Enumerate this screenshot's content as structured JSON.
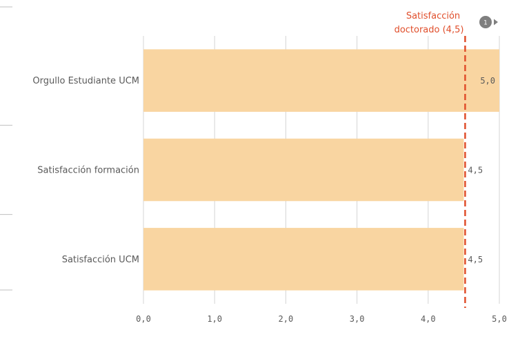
{
  "chart_data": {
    "type": "bar",
    "orientation": "horizontal",
    "categories": [
      "Orgullo Estudiante UCM",
      "Satisfacción formación",
      "Satisfacción UCM"
    ],
    "values": [
      5.0,
      4.5,
      4.5
    ],
    "value_labels": [
      "5,0",
      "4,5",
      "4,5"
    ],
    "xlim": [
      0,
      5
    ],
    "x_ticks": [
      0,
      1,
      2,
      3,
      4,
      5
    ],
    "x_tick_labels": [
      "0,0",
      "1,0",
      "2,0",
      "3,0",
      "4,0",
      "5,0"
    ],
    "grid": true,
    "bar_color": "#f9d5a1",
    "reference_line": {
      "value": 4.5,
      "label_line1": "Satisfacción",
      "label_line2": "doctorado (4,5)",
      "color": "#e04e2b",
      "style": "dashed"
    },
    "badge": {
      "text": "1",
      "icon": "play-arrow-icon"
    }
  }
}
